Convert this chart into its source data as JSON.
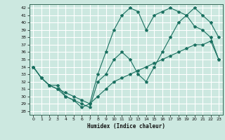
{
  "xlabel": "Humidex (Indice chaleur)",
  "bg_color": "#cce8e0",
  "grid_color": "#ffffff",
  "line_color": "#1a7060",
  "xlim": [
    -0.5,
    23.5
  ],
  "ylim": [
    27.5,
    42.5
  ],
  "yticks": [
    28,
    29,
    30,
    31,
    32,
    33,
    34,
    35,
    36,
    37,
    38,
    39,
    40,
    41,
    42
  ],
  "xticks": [
    0,
    1,
    2,
    3,
    4,
    5,
    6,
    7,
    8,
    9,
    10,
    11,
    12,
    13,
    14,
    15,
    16,
    17,
    18,
    19,
    20,
    21,
    22,
    23
  ],
  "line1_y": [
    34,
    32.5,
    31.5,
    31.5,
    30,
    29.5,
    29,
    28.5,
    32,
    33,
    35,
    36,
    35,
    33,
    32,
    34,
    36,
    38,
    40,
    41,
    42,
    41,
    40,
    38
  ],
  "line2_y": [
    34,
    32.5,
    31.5,
    31,
    30,
    29.5,
    28.5,
    29,
    33,
    36,
    39,
    41,
    42,
    41.5,
    39,
    41,
    41.5,
    42,
    41.5,
    41,
    39.5,
    39,
    38,
    35
  ],
  "line3_y": [
    34,
    32.5,
    31.5,
    31,
    30.5,
    30,
    29.5,
    29,
    30,
    31,
    32,
    32.5,
    33,
    33.5,
    34,
    34.5,
    35,
    35.5,
    36,
    36.5,
    37,
    37,
    37.5,
    35
  ]
}
